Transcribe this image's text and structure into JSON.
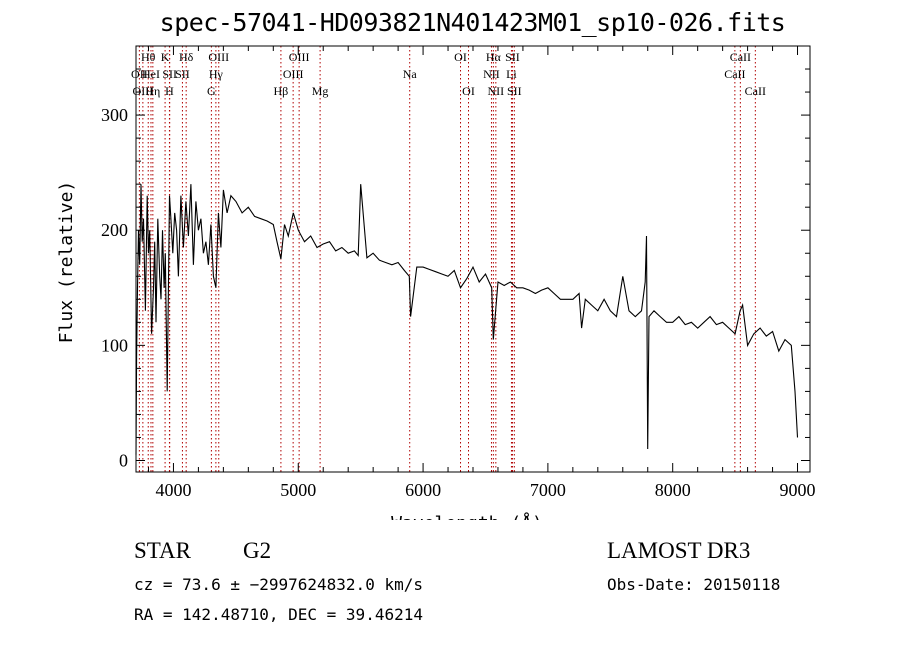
{
  "chart_data": {
    "type": "line",
    "title": "spec-57041-HD093821N401423M01_sp10-026.fits",
    "xlabel": "Wavelength (Å)",
    "ylabel": "Flux (relative)",
    "xlim": [
      3700,
      9100
    ],
    "ylim": [
      -10,
      360
    ],
    "xticks": [
      4000,
      5000,
      6000,
      7000,
      8000,
      9000
    ],
    "xtick_labels": [
      "4000",
      "5000",
      "6000",
      "7000",
      "8000",
      "9000"
    ],
    "yticks": [
      0,
      100,
      200,
      300
    ],
    "ytick_labels": [
      "0",
      "100",
      "200",
      "300"
    ],
    "series": [
      {
        "name": "spectrum",
        "x": [
          3700,
          3705,
          3712,
          3720,
          3730,
          3740,
          3750,
          3760,
          3775,
          3790,
          3800,
          3810,
          3825,
          3840,
          3850,
          3860,
          3875,
          3890,
          3900,
          3912,
          3925,
          3935,
          3950,
          3968,
          3980,
          3995,
          4010,
          4025,
          4040,
          4060,
          4080,
          4100,
          4120,
          4140,
          4160,
          4180,
          4200,
          4220,
          4240,
          4260,
          4280,
          4300,
          4320,
          4340,
          4360,
          4380,
          4400,
          4430,
          4460,
          4500,
          4550,
          4600,
          4650,
          4700,
          4750,
          4800,
          4830,
          4861,
          4890,
          4920,
          4960,
          5000,
          5050,
          5100,
          5150,
          5200,
          5250,
          5300,
          5350,
          5400,
          5450,
          5480,
          5500,
          5550,
          5600,
          5650,
          5700,
          5750,
          5800,
          5850,
          5890,
          5900,
          5950,
          6000,
          6050,
          6100,
          6150,
          6200,
          6250,
          6300,
          6350,
          6400,
          6450,
          6500,
          6550,
          6563,
          6600,
          6650,
          6700,
          6750,
          6800,
          6850,
          6900,
          6950,
          7000,
          7050,
          7100,
          7150,
          7200,
          7250,
          7270,
          7300,
          7350,
          7400,
          7450,
          7500,
          7550,
          7600,
          7650,
          7700,
          7750,
          7780,
          7790,
          7800,
          7810,
          7850,
          7900,
          7950,
          8000,
          8050,
          8100,
          8150,
          8200,
          8250,
          8300,
          8350,
          8400,
          8450,
          8500,
          8540,
          8560,
          8600,
          8650,
          8700,
          8750,
          8800,
          8850,
          8900,
          8950,
          8980,
          9000
        ],
        "values": [
          5,
          90,
          150,
          200,
          170,
          240,
          190,
          210,
          130,
          230,
          180,
          200,
          110,
          150,
          190,
          120,
          210,
          160,
          140,
          200,
          150,
          180,
          60,
          230,
          210,
          180,
          215,
          200,
          160,
          230,
          185,
          225,
          195,
          240,
          170,
          225,
          200,
          210,
          180,
          190,
          170,
          205,
          160,
          150,
          215,
          185,
          235,
          215,
          230,
          225,
          215,
          220,
          212,
          210,
          208,
          205,
          190,
          175,
          205,
          195,
          215,
          200,
          190,
          195,
          185,
          188,
          190,
          182,
          185,
          180,
          182,
          178,
          240,
          176,
          180,
          174,
          172,
          170,
          172,
          165,
          160,
          125,
          168,
          168,
          166,
          164,
          162,
          160,
          165,
          150,
          158,
          168,
          155,
          162,
          150,
          105,
          155,
          152,
          155,
          150,
          150,
          148,
          145,
          148,
          150,
          145,
          140,
          140,
          140,
          145,
          115,
          140,
          135,
          130,
          140,
          130,
          125,
          160,
          130,
          125,
          130,
          155,
          195,
          10,
          125,
          130,
          125,
          120,
          120,
          125,
          118,
          120,
          115,
          120,
          125,
          118,
          120,
          115,
          110,
          130,
          135,
          100,
          110,
          115,
          108,
          112,
          95,
          105,
          100,
          60,
          20
        ]
      }
    ],
    "lines": [
      {
        "name": "Hθ",
        "wavelength": 3798,
        "row": 1
      },
      {
        "name": "OII",
        "wavelength": 3727,
        "row": 2
      },
      {
        "name": "OIII",
        "wavelength": 3755,
        "row": 3
      },
      {
        "name": "HeI",
        "wavelength": 3820,
        "row": 2
      },
      {
        "name": "Hη",
        "wavelength": 3835,
        "row": 3
      },
      {
        "name": "K",
        "wavelength": 3933,
        "row": 1
      },
      {
        "name": "SII",
        "wavelength": 3970,
        "row": 2
      },
      {
        "name": "H",
        "wavelength": 3968,
        "row": 3
      },
      {
        "name": "Hδ",
        "wavelength": 4102,
        "row": 1
      },
      {
        "name": "SII",
        "wavelength": 4072,
        "row": 2
      },
      {
        "name": "G",
        "wavelength": 4304,
        "row": 3
      },
      {
        "name": "OIII",
        "wavelength": 4363,
        "row": 1
      },
      {
        "name": "Hγ",
        "wavelength": 4340,
        "row": 2
      },
      {
        "name": "Hβ",
        "wavelength": 4861,
        "row": 3
      },
      {
        "name": "OIII",
        "wavelength": 5007,
        "row": 1
      },
      {
        "name": "OIII",
        "wavelength": 4959,
        "row": 2
      },
      {
        "name": "Mg",
        "wavelength": 5175,
        "row": 3
      },
      {
        "name": "Na",
        "wavelength": 5893,
        "row": 2
      },
      {
        "name": "OI",
        "wavelength": 6300,
        "row": 1
      },
      {
        "name": "OI",
        "wavelength": 6364,
        "row": 3
      },
      {
        "name": "Hα",
        "wavelength": 6563,
        "row": 1
      },
      {
        "name": "NII",
        "wavelength": 6548,
        "row": 2
      },
      {
        "name": "NII",
        "wavelength": 6583,
        "row": 3
      },
      {
        "name": "SII",
        "wavelength": 6716,
        "row": 1
      },
      {
        "name": "Li",
        "wavelength": 6708,
        "row": 2
      },
      {
        "name": "SII",
        "wavelength": 6731,
        "row": 3
      },
      {
        "name": "CaII",
        "wavelength": 8542,
        "row": 1
      },
      {
        "name": "CaII",
        "wavelength": 8498,
        "row": 2
      },
      {
        "name": "CaII",
        "wavelength": 8662,
        "row": 3
      }
    ]
  },
  "info": {
    "object_type": "STAR",
    "subclass": "G2",
    "survey": "LAMOST DR3",
    "redshift": "cz = 73.6 ± −2997624832.0 km/s",
    "obs_date": "Obs-Date: 20150118",
    "coords": "RA = 142.48710, DEC =  39.46214"
  },
  "colors": {
    "line": "#000000",
    "marker": "#b00000",
    "background": "#ffffff"
  }
}
